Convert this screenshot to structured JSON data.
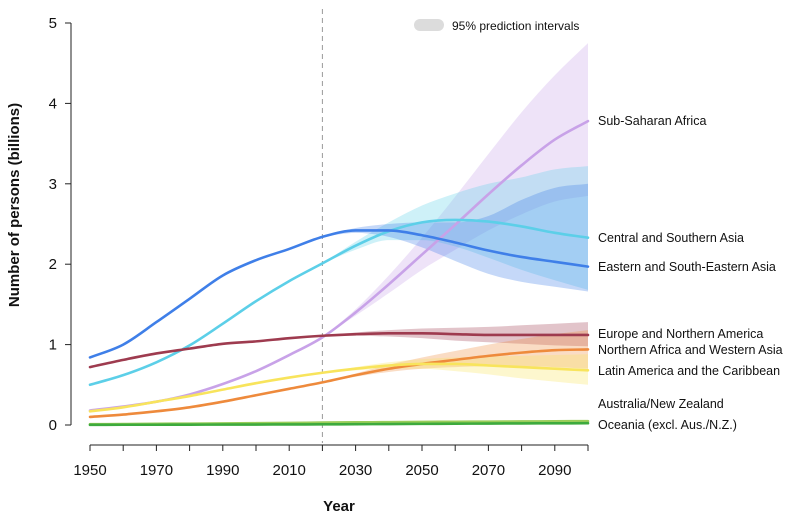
{
  "chart_data": {
    "type": "line",
    "title": "",
    "xlabel": "Year",
    "ylabel": "Number of persons (billions)",
    "xlim": [
      1950,
      2100
    ],
    "ylim": [
      0,
      5
    ],
    "x_ticks": [
      1950,
      1970,
      1990,
      2010,
      2030,
      2050,
      2070,
      2090
    ],
    "y_ticks": [
      0,
      1,
      2,
      3,
      4,
      5
    ],
    "projection_start": 2020,
    "legend": {
      "label": "95% prediction intervals",
      "placement": "top-right"
    },
    "series": [
      {
        "name": "Sub-Saharan Africa",
        "color": "#C8A2E8",
        "x": [
          1950,
          1960,
          1970,
          1980,
          1990,
          2000,
          2010,
          2020,
          2030,
          2040,
          2050,
          2060,
          2070,
          2080,
          2090,
          2100
        ],
        "values": [
          0.18,
          0.23,
          0.29,
          0.38,
          0.51,
          0.67,
          0.87,
          1.09,
          1.4,
          1.75,
          2.12,
          2.49,
          2.87,
          3.23,
          3.55,
          3.78
        ],
        "interval": {
          "x": [
            2020,
            2030,
            2040,
            2050,
            2060,
            2070,
            2080,
            2090,
            2100
          ],
          "lower": [
            1.09,
            1.36,
            1.64,
            1.93,
            2.18,
            2.42,
            2.62,
            2.78,
            2.85
          ],
          "upper": [
            1.09,
            1.44,
            1.86,
            2.33,
            2.84,
            3.37,
            3.89,
            4.35,
            4.75
          ]
        }
      },
      {
        "name": "Central and Southern Asia",
        "color": "#5CCFE8",
        "x": [
          1950,
          1960,
          1970,
          1980,
          1990,
          2000,
          2010,
          2020,
          2030,
          2040,
          2050,
          2060,
          2070,
          2080,
          2090,
          2100
        ],
        "values": [
          0.5,
          0.62,
          0.78,
          0.99,
          1.26,
          1.54,
          1.79,
          2.01,
          2.23,
          2.41,
          2.52,
          2.55,
          2.53,
          2.47,
          2.39,
          2.33
        ],
        "interval": {
          "x": [
            2020,
            2030,
            2040,
            2050,
            2060,
            2070,
            2080,
            2090,
            2100
          ],
          "lower": [
            2.01,
            2.18,
            2.3,
            2.3,
            2.22,
            2.08,
            1.93,
            1.8,
            1.68
          ],
          "upper": [
            2.01,
            2.28,
            2.52,
            2.73,
            2.88,
            3.0,
            3.08,
            3.18,
            3.22
          ]
        }
      },
      {
        "name": "Eastern and South-Eastern Asia",
        "color": "#3F7FE8",
        "x": [
          1950,
          1960,
          1970,
          1980,
          1990,
          2000,
          2010,
          2020,
          2030,
          2040,
          2050,
          2060,
          2070,
          2080,
          2090,
          2100
        ],
        "values": [
          0.84,
          1.0,
          1.28,
          1.57,
          1.86,
          2.05,
          2.19,
          2.34,
          2.42,
          2.42,
          2.36,
          2.27,
          2.17,
          2.09,
          2.03,
          1.97
        ],
        "interval": {
          "x": [
            2020,
            2030,
            2040,
            2050,
            2060,
            2070,
            2080,
            2090,
            2100
          ],
          "lower": [
            2.34,
            2.39,
            2.34,
            2.21,
            2.04,
            1.88,
            1.78,
            1.72,
            1.66
          ],
          "upper": [
            2.34,
            2.45,
            2.5,
            2.52,
            2.52,
            2.6,
            2.8,
            2.95,
            3.0
          ]
        }
      },
      {
        "name": "Europe and Northern America",
        "color": "#9E3B4F",
        "x": [
          1950,
          1960,
          1970,
          1980,
          1990,
          2000,
          2010,
          2020,
          2030,
          2040,
          2050,
          2060,
          2070,
          2080,
          2090,
          2100
        ],
        "values": [
          0.72,
          0.81,
          0.89,
          0.95,
          1.01,
          1.04,
          1.08,
          1.11,
          1.13,
          1.14,
          1.14,
          1.13,
          1.12,
          1.12,
          1.12,
          1.12
        ],
        "interval": {
          "x": [
            2020,
            2030,
            2040,
            2050,
            2060,
            2070,
            2080,
            2090,
            2100
          ],
          "lower": [
            1.11,
            1.11,
            1.1,
            1.08,
            1.05,
            1.03,
            1.01,
            0.99,
            0.98
          ],
          "upper": [
            1.11,
            1.15,
            1.18,
            1.2,
            1.21,
            1.22,
            1.24,
            1.26,
            1.28
          ]
        }
      },
      {
        "name": "Northern Africa and Western Asia",
        "color": "#EE8A3C",
        "x": [
          1950,
          1960,
          1970,
          1980,
          1990,
          2000,
          2010,
          2020,
          2030,
          2040,
          2050,
          2060,
          2070,
          2080,
          2090,
          2100
        ],
        "values": [
          0.1,
          0.13,
          0.17,
          0.22,
          0.29,
          0.37,
          0.45,
          0.53,
          0.62,
          0.7,
          0.76,
          0.81,
          0.86,
          0.9,
          0.93,
          0.94
        ],
        "interval": {
          "x": [
            2020,
            2030,
            2040,
            2050,
            2060,
            2070,
            2080,
            2090,
            2100
          ],
          "lower": [
            0.53,
            0.6,
            0.66,
            0.7,
            0.72,
            0.73,
            0.73,
            0.72,
            0.7
          ],
          "upper": [
            0.53,
            0.64,
            0.75,
            0.84,
            0.92,
            1.0,
            1.07,
            1.13,
            1.18
          ]
        }
      },
      {
        "name": "Latin America and the Caribbean",
        "color": "#F8E45C",
        "x": [
          1950,
          1960,
          1970,
          1980,
          1990,
          2000,
          2010,
          2020,
          2030,
          2040,
          2050,
          2060,
          2070,
          2080,
          2090,
          2100
        ],
        "values": [
          0.17,
          0.22,
          0.29,
          0.36,
          0.44,
          0.52,
          0.59,
          0.65,
          0.7,
          0.74,
          0.76,
          0.76,
          0.74,
          0.72,
          0.7,
          0.68
        ],
        "interval": {
          "x": [
            2020,
            2030,
            2040,
            2050,
            2060,
            2070,
            2080,
            2090,
            2100
          ],
          "lower": [
            0.65,
            0.68,
            0.7,
            0.7,
            0.67,
            0.63,
            0.58,
            0.54,
            0.5
          ],
          "upper": [
            0.65,
            0.72,
            0.78,
            0.82,
            0.84,
            0.85,
            0.86,
            0.87,
            0.88
          ]
        }
      },
      {
        "name": "Australia/New Zealand",
        "color": "#9ACD5A",
        "x": [
          1950,
          1960,
          1970,
          1980,
          1990,
          2000,
          2010,
          2020,
          2030,
          2040,
          2050,
          2060,
          2070,
          2080,
          2090,
          2100
        ],
        "values": [
          0.01,
          0.012,
          0.015,
          0.017,
          0.02,
          0.022,
          0.026,
          0.03,
          0.033,
          0.035,
          0.038,
          0.04,
          0.042,
          0.044,
          0.046,
          0.048
        ]
      },
      {
        "name": "Oceania (excl. Aus./N.Z.)",
        "color": "#3DAA3D",
        "x": [
          1950,
          1960,
          1970,
          1980,
          1990,
          2000,
          2010,
          2020,
          2030,
          2040,
          2050,
          2060,
          2070,
          2080,
          2090,
          2100
        ],
        "values": [
          0.002,
          0.003,
          0.003,
          0.004,
          0.005,
          0.006,
          0.007,
          0.008,
          0.01,
          0.012,
          0.014,
          0.016,
          0.018,
          0.02,
          0.021,
          0.022
        ]
      }
    ]
  }
}
